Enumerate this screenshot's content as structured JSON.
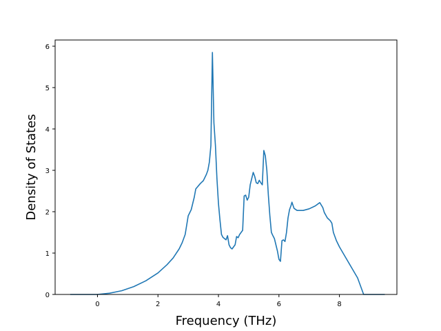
{
  "chart_data": {
    "type": "line",
    "title": "",
    "xlabel": "Frequency (THz)",
    "ylabel": "Density of States",
    "xlim": [
      -1.4,
      9.9
    ],
    "ylim": [
      0,
      6.15
    ],
    "xticks": [
      0,
      2,
      4,
      6,
      8
    ],
    "yticks": [
      0,
      1,
      2,
      3,
      4,
      5,
      6
    ],
    "grid": false,
    "legend": "none",
    "series": [
      {
        "color": "#1f77b4",
        "points": [
          [
            -0.9,
            0
          ],
          [
            0.0,
            0
          ],
          [
            0.4,
            0.03
          ],
          [
            0.8,
            0.09
          ],
          [
            1.2,
            0.19
          ],
          [
            1.6,
            0.33
          ],
          [
            2.0,
            0.52
          ],
          [
            2.3,
            0.72
          ],
          [
            2.5,
            0.88
          ],
          [
            2.7,
            1.1
          ],
          [
            2.8,
            1.25
          ],
          [
            2.9,
            1.45
          ],
          [
            3.0,
            1.9
          ],
          [
            3.1,
            2.05
          ],
          [
            3.2,
            2.35
          ],
          [
            3.25,
            2.55
          ],
          [
            3.4,
            2.68
          ],
          [
            3.5,
            2.75
          ],
          [
            3.6,
            2.9
          ],
          [
            3.65,
            3.0
          ],
          [
            3.7,
            3.2
          ],
          [
            3.75,
            3.6
          ],
          [
            3.8,
            5.85
          ],
          [
            3.85,
            4.15
          ],
          [
            3.9,
            3.6
          ],
          [
            3.95,
            2.8
          ],
          [
            4.0,
            2.2
          ],
          [
            4.05,
            1.8
          ],
          [
            4.1,
            1.45
          ],
          [
            4.15,
            1.38
          ],
          [
            4.2,
            1.35
          ],
          [
            4.25,
            1.32
          ],
          [
            4.3,
            1.42
          ],
          [
            4.35,
            1.2
          ],
          [
            4.4,
            1.13
          ],
          [
            4.45,
            1.1
          ],
          [
            4.5,
            1.15
          ],
          [
            4.55,
            1.2
          ],
          [
            4.6,
            1.4
          ],
          [
            4.65,
            1.37
          ],
          [
            4.7,
            1.45
          ],
          [
            4.75,
            1.5
          ],
          [
            4.8,
            1.55
          ],
          [
            4.85,
            2.38
          ],
          [
            4.9,
            2.4
          ],
          [
            4.95,
            2.28
          ],
          [
            5.0,
            2.35
          ],
          [
            5.05,
            2.65
          ],
          [
            5.1,
            2.8
          ],
          [
            5.15,
            2.95
          ],
          [
            5.2,
            2.85
          ],
          [
            5.25,
            2.7
          ],
          [
            5.3,
            2.68
          ],
          [
            5.35,
            2.76
          ],
          [
            5.4,
            2.7
          ],
          [
            5.45,
            2.65
          ],
          [
            5.5,
            3.48
          ],
          [
            5.55,
            3.35
          ],
          [
            5.6,
            3.0
          ],
          [
            5.65,
            2.4
          ],
          [
            5.7,
            1.9
          ],
          [
            5.75,
            1.5
          ],
          [
            5.8,
            1.42
          ],
          [
            5.85,
            1.35
          ],
          [
            5.9,
            1.2
          ],
          [
            5.95,
            1.05
          ],
          [
            6.0,
            0.85
          ],
          [
            6.05,
            0.8
          ],
          [
            6.1,
            1.3
          ],
          [
            6.15,
            1.32
          ],
          [
            6.2,
            1.28
          ],
          [
            6.25,
            1.5
          ],
          [
            6.3,
            1.85
          ],
          [
            6.35,
            2.05
          ],
          [
            6.4,
            2.15
          ],
          [
            6.43,
            2.23
          ],
          [
            6.5,
            2.08
          ],
          [
            6.6,
            2.03
          ],
          [
            6.8,
            2.03
          ],
          [
            7.0,
            2.07
          ],
          [
            7.2,
            2.14
          ],
          [
            7.35,
            2.22
          ],
          [
            7.45,
            2.1
          ],
          [
            7.5,
            1.98
          ],
          [
            7.6,
            1.85
          ],
          [
            7.7,
            1.78
          ],
          [
            7.75,
            1.72
          ],
          [
            7.8,
            1.5
          ],
          [
            7.9,
            1.3
          ],
          [
            8.0,
            1.15
          ],
          [
            8.2,
            0.9
          ],
          [
            8.4,
            0.65
          ],
          [
            8.6,
            0.4
          ],
          [
            8.7,
            0.2
          ],
          [
            8.8,
            0.0
          ],
          [
            9.5,
            0.0
          ]
        ]
      }
    ]
  }
}
